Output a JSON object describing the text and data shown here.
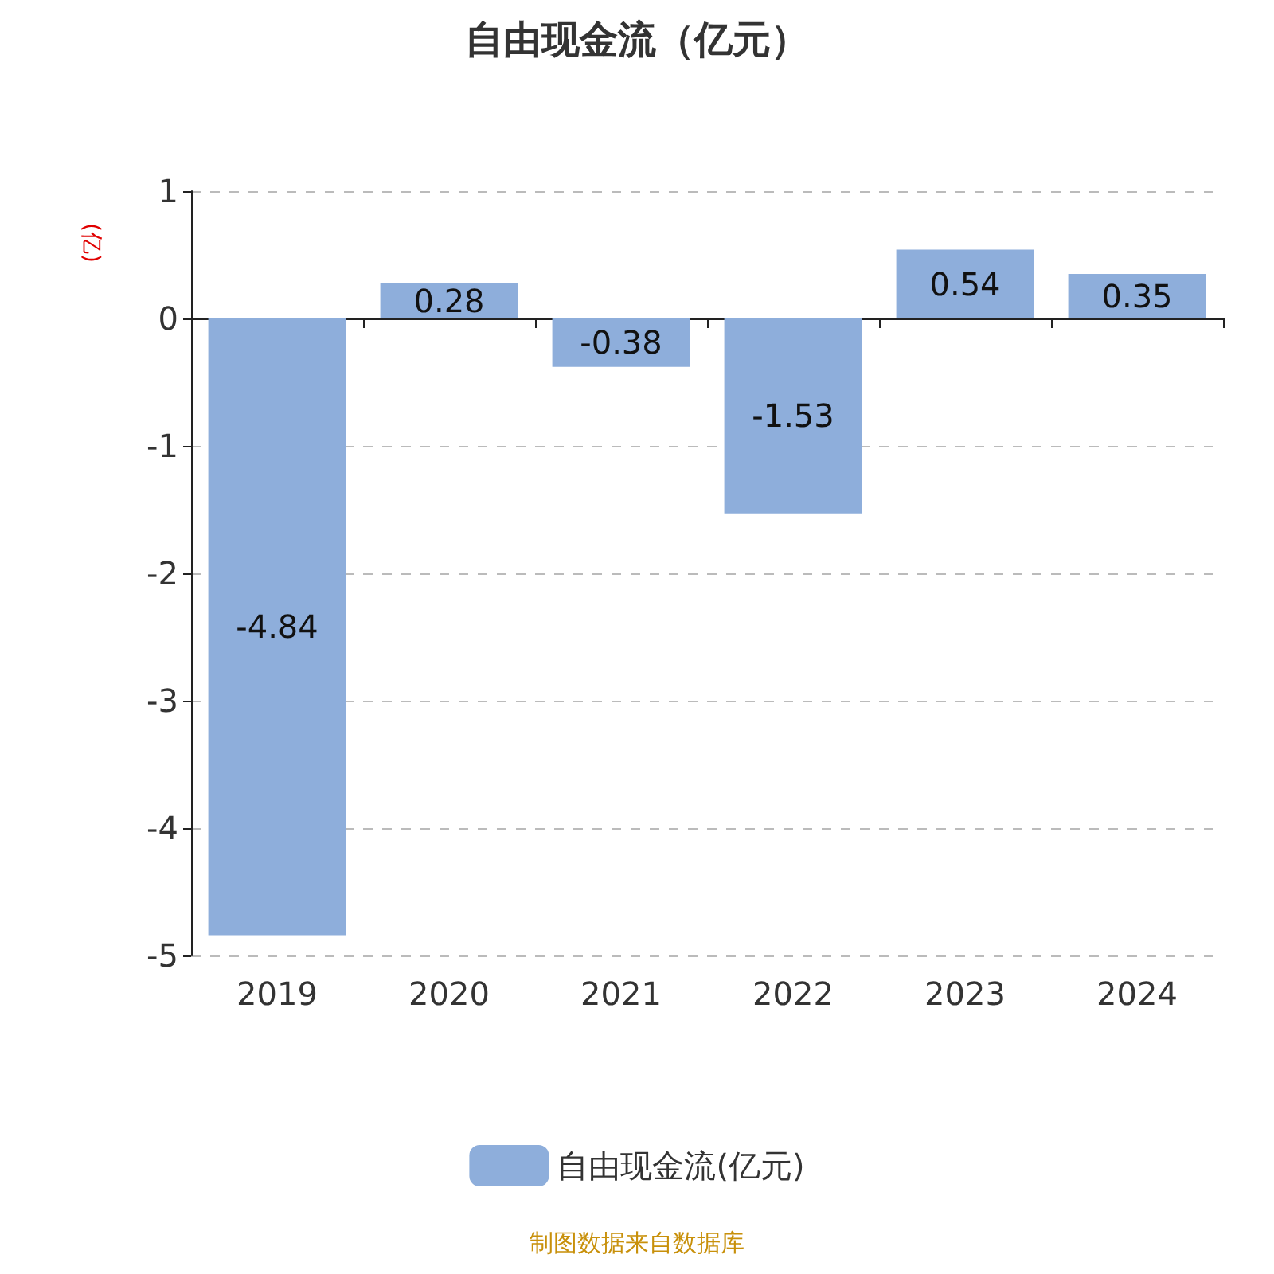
{
  "chart_data": {
    "type": "bar",
    "title": "自由现金流（亿元）",
    "ylabel": "(亿)",
    "categories": [
      "2019",
      "2020",
      "2021",
      "2022",
      "2023",
      "2024"
    ],
    "series": [
      {
        "name": "自由现金流(亿元)",
        "color": "#8eaedb",
        "values": [
          -4.84,
          0.28,
          -0.38,
          -1.53,
          0.54,
          0.35
        ]
      }
    ],
    "ylim": [
      -5,
      1
    ],
    "yticks": [
      -5,
      -4,
      -3,
      -2,
      -1,
      0,
      1
    ],
    "grid": "y",
    "legend": "bottom",
    "data_labels": true,
    "annotations": [
      "制图数据来自数据库"
    ]
  }
}
